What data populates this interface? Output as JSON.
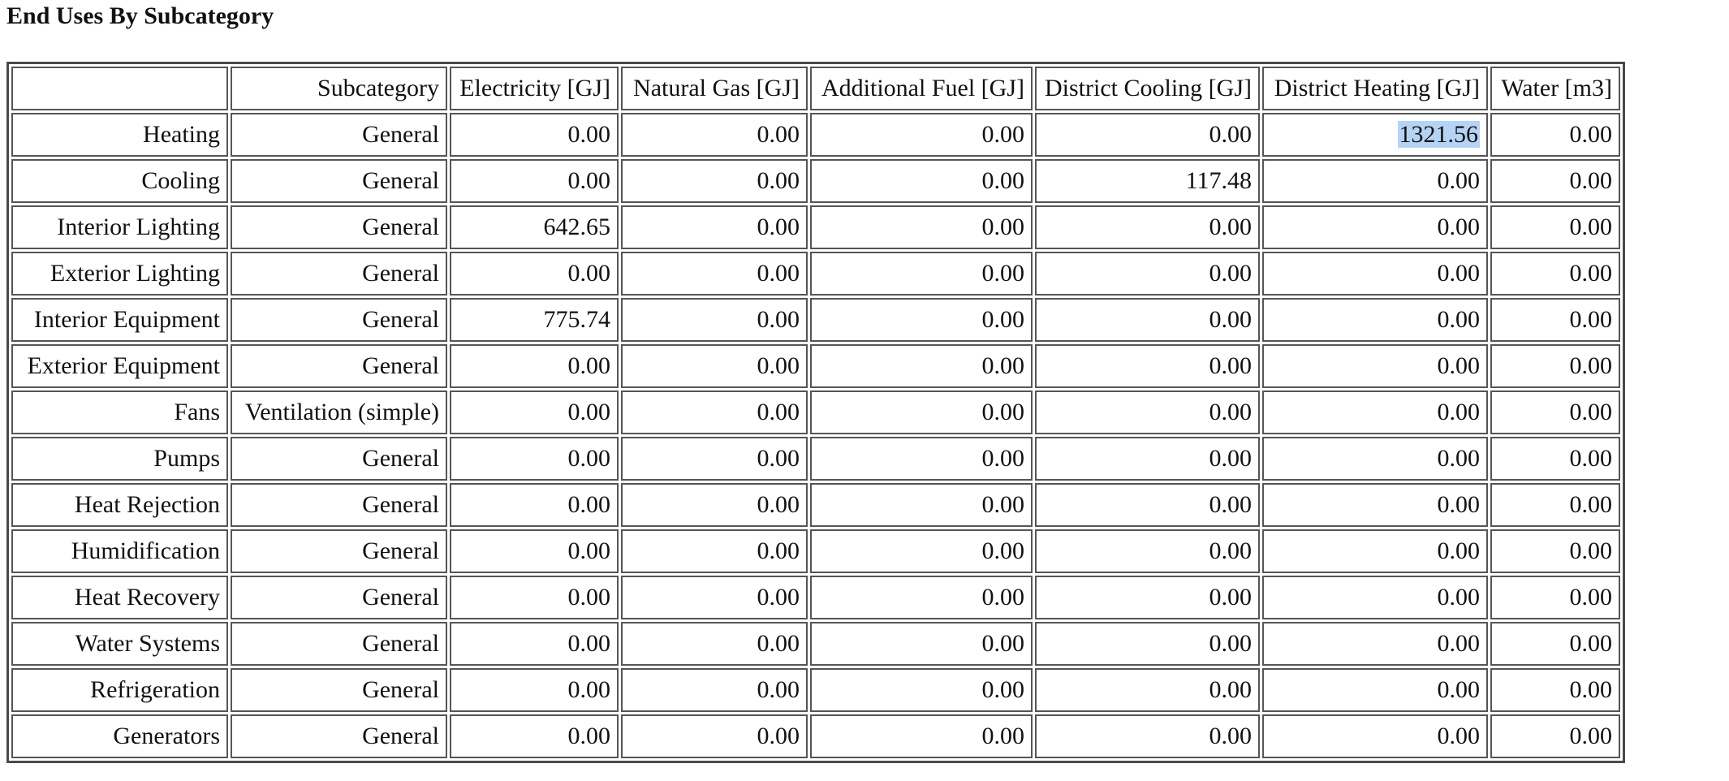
{
  "title": "End Uses By Subcategory",
  "table": {
    "columns": [
      "",
      "Subcategory",
      "Electricity [GJ]",
      "Natural Gas [GJ]",
      "Additional Fuel [GJ]",
      "District Cooling [GJ]",
      "District Heating [GJ]",
      "Water [m3]"
    ],
    "rows": [
      [
        "Heating",
        "General",
        "0.00",
        "0.00",
        "0.00",
        "0.00",
        "1321.56",
        "0.00"
      ],
      [
        "Cooling",
        "General",
        "0.00",
        "0.00",
        "0.00",
        "117.48",
        "0.00",
        "0.00"
      ],
      [
        "Interior Lighting",
        "General",
        "642.65",
        "0.00",
        "0.00",
        "0.00",
        "0.00",
        "0.00"
      ],
      [
        "Exterior Lighting",
        "General",
        "0.00",
        "0.00",
        "0.00",
        "0.00",
        "0.00",
        "0.00"
      ],
      [
        "Interior Equipment",
        "General",
        "775.74",
        "0.00",
        "0.00",
        "0.00",
        "0.00",
        "0.00"
      ],
      [
        "Exterior Equipment",
        "General",
        "0.00",
        "0.00",
        "0.00",
        "0.00",
        "0.00",
        "0.00"
      ],
      [
        "Fans",
        "Ventilation (simple)",
        "0.00",
        "0.00",
        "0.00",
        "0.00",
        "0.00",
        "0.00"
      ],
      [
        "Pumps",
        "General",
        "0.00",
        "0.00",
        "0.00",
        "0.00",
        "0.00",
        "0.00"
      ],
      [
        "Heat Rejection",
        "General",
        "0.00",
        "0.00",
        "0.00",
        "0.00",
        "0.00",
        "0.00"
      ],
      [
        "Humidification",
        "General",
        "0.00",
        "0.00",
        "0.00",
        "0.00",
        "0.00",
        "0.00"
      ],
      [
        "Heat Recovery",
        "General",
        "0.00",
        "0.00",
        "0.00",
        "0.00",
        "0.00",
        "0.00"
      ],
      [
        "Water Systems",
        "General",
        "0.00",
        "0.00",
        "0.00",
        "0.00",
        "0.00",
        "0.00"
      ],
      [
        "Refrigeration",
        "General",
        "0.00",
        "0.00",
        "0.00",
        "0.00",
        "0.00",
        "0.00"
      ],
      [
        "Generators",
        "General",
        "0.00",
        "0.00",
        "0.00",
        "0.00",
        "0.00",
        "0.00"
      ]
    ],
    "selection_color": "#b5d3f5"
  }
}
